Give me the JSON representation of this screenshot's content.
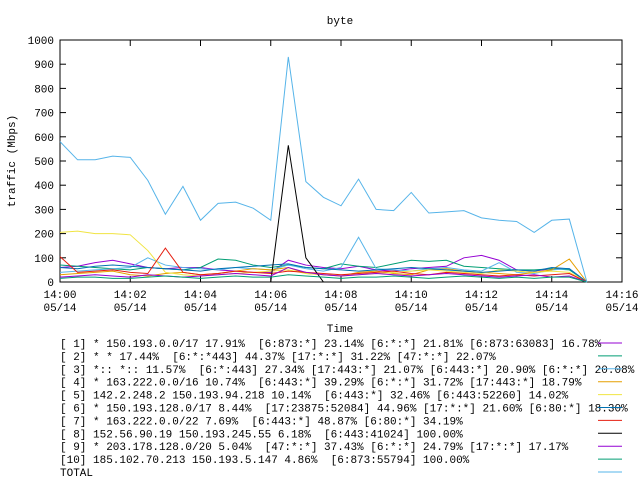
{
  "chart_data": {
    "type": "line",
    "title": "byte",
    "xlabel": "Time",
    "ylabel": "traffic (Mbps)",
    "x": [
      0,
      0.5,
      1,
      1.5,
      2,
      2.5,
      3,
      3.5,
      4,
      4.5,
      5,
      5.5,
      6,
      6.5,
      7,
      7.5,
      8,
      8.5,
      9,
      9.5,
      10,
      10.5,
      11,
      11.5,
      12,
      12.5,
      13,
      13.5,
      14,
      14.5,
      15
    ],
    "xlim": [
      0,
      16
    ],
    "xticks": [
      {
        "value": 0,
        "label": "14:00\n05/14"
      },
      {
        "value": 2,
        "label": "14:02\n05/14"
      },
      {
        "value": 4,
        "label": "14:04\n05/14"
      },
      {
        "value": 6,
        "label": "14:06\n05/14"
      },
      {
        "value": 8,
        "label": "14:08\n05/14"
      },
      {
        "value": 10,
        "label": "14:10\n05/14"
      },
      {
        "value": 12,
        "label": "14:12\n05/14"
      },
      {
        "value": 14,
        "label": "14:14\n05/14"
      },
      {
        "value": 16,
        "label": "14:16\n05/14"
      }
    ],
    "ylim": [
      0,
      1000
    ],
    "yticks": [
      0,
      100,
      200,
      300,
      400,
      500,
      600,
      700,
      800,
      900,
      1000
    ],
    "series": [
      {
        "name": "[ 1] * 150.193.0.0/17 17.91%  [6:873:*] 23.14% [6:*:*] 21.81% [6:873:63083] 16.78%",
        "color": "#9400d3",
        "values": [
          60,
          65,
          80,
          90,
          75,
          60,
          55,
          60,
          60,
          50,
          45,
          40,
          40,
          90,
          70,
          60,
          55,
          65,
          50,
          45,
          55,
          60,
          65,
          100,
          110,
          90,
          50,
          45,
          55,
          55,
          0
        ]
      },
      {
        "name": "[ 2] * * 17.44%  [6:*:*443] 44.37% [17:*:*] 31.22% [47:*:*] 22.07%",
        "color": "#009e73",
        "values": [
          70,
          65,
          60,
          55,
          50,
          60,
          55,
          50,
          60,
          95,
          90,
          70,
          60,
          70,
          60,
          55,
          75,
          65,
          60,
          75,
          90,
          85,
          90,
          65,
          60,
          55,
          50,
          50,
          55,
          50,
          0
        ]
      },
      {
        "name": "[ 3] *:: *:: 11.57%  [6:*:443] 27.34% [17:443:*] 21.07% [6:443:*] 20.90% [6:*:*] 20.08%",
        "color": "#56b4e9",
        "values": [
          40,
          45,
          50,
          55,
          60,
          100,
          70,
          60,
          55,
          50,
          60,
          55,
          50,
          70,
          55,
          45,
          60,
          185,
          55,
          50,
          45,
          55,
          60,
          50,
          45,
          80,
          40,
          35,
          50,
          55,
          0
        ]
      },
      {
        "name": "[ 4] * 163.222.0.0/16 10.74%  [6:443:*] 39.29% [6:*:*] 31.72% [17:443:*] 18.79%",
        "color": "#e69f00",
        "values": [
          30,
          35,
          40,
          45,
          30,
          25,
          35,
          40,
          30,
          35,
          45,
          55,
          50,
          60,
          35,
          30,
          25,
          40,
          45,
          35,
          30,
          50,
          55,
          45,
          40,
          35,
          30,
          40,
          50,
          95,
          0
        ]
      },
      {
        "name": "[ 5] 142.2.248.2 150.193.94.218 10.14%  [6:443:*] 32.46% [6:443:52260] 14.02%",
        "color": "#f0e442",
        "values": [
          205,
          210,
          200,
          200,
          195,
          130,
          40,
          30,
          25,
          30,
          35,
          40,
          45,
          50,
          35,
          30,
          25,
          30,
          35,
          40,
          45,
          50,
          45,
          40,
          35,
          50,
          45,
          40,
          45,
          40,
          0
        ]
      },
      {
        "name": "[ 6] * 150.193.128.0/17 8.44%  [17:23875:52084] 44.96% [17:*:*] 21.60% [6:80:*] 18.30%",
        "color": "#0072b2",
        "values": [
          60,
          55,
          65,
          70,
          65,
          60,
          55,
          50,
          45,
          55,
          60,
          65,
          70,
          75,
          60,
          55,
          50,
          45,
          50,
          55,
          60,
          55,
          50,
          45,
          40,
          45,
          50,
          45,
          60,
          55,
          0
        ]
      },
      {
        "name": "[ 7] * 163.222.0.0/22 7.69%  [6:443:*] 48.87% [6:80:*] 34.19%",
        "color": "#e51e10",
        "values": [
          105,
          40,
          45,
          50,
          40,
          35,
          140,
          40,
          30,
          35,
          45,
          40,
          35,
          45,
          40,
          35,
          30,
          35,
          40,
          45,
          35,
          30,
          40,
          35,
          30,
          25,
          30,
          25,
          30,
          35,
          0
        ]
      },
      {
        "name": "[ 8] 152.56.90.19 150.193.245.55 6.18%  [6:443:41024] 100.00%",
        "color": "#000000",
        "values": [
          0,
          0,
          0,
          0,
          0,
          0,
          0,
          0,
          0,
          0,
          0,
          0,
          0,
          565,
          100,
          0,
          0,
          0,
          0,
          0,
          0,
          0,
          0,
          0,
          0,
          0,
          0,
          0,
          0,
          0,
          0
        ]
      },
      {
        "name": "[ 9] * 203.178.128.0/20 5.04%  [47:*:*] 37.43% [6:*:*] 24.79% [17:*:*] 17.17%",
        "color": "#9400d3",
        "values": [
          20,
          25,
          30,
          25,
          20,
          30,
          25,
          20,
          25,
          30,
          35,
          30,
          25,
          60,
          40,
          30,
          25,
          30,
          35,
          30,
          25,
          30,
          35,
          30,
          25,
          20,
          25,
          30,
          20,
          25,
          0
        ]
      },
      {
        "name": "[10] 185.102.70.213 150.193.5.147 4.86%  [6:873:55794] 100.00%",
        "color": "#009e73",
        "values": [
          15,
          20,
          20,
          15,
          15,
          20,
          25,
          20,
          15,
          20,
          25,
          20,
          20,
          30,
          25,
          20,
          15,
          20,
          20,
          25,
          20,
          15,
          20,
          25,
          20,
          15,
          20,
          15,
          20,
          20,
          0
        ]
      },
      {
        "name": "TOTAL",
        "color": "#56b4e9",
        "values": [
          580,
          505,
          505,
          520,
          515,
          420,
          280,
          395,
          255,
          325,
          330,
          305,
          255,
          930,
          415,
          350,
          315,
          425,
          300,
          295,
          370,
          285,
          290,
          295,
          265,
          255,
          250,
          205,
          255,
          260,
          0
        ]
      }
    ]
  }
}
